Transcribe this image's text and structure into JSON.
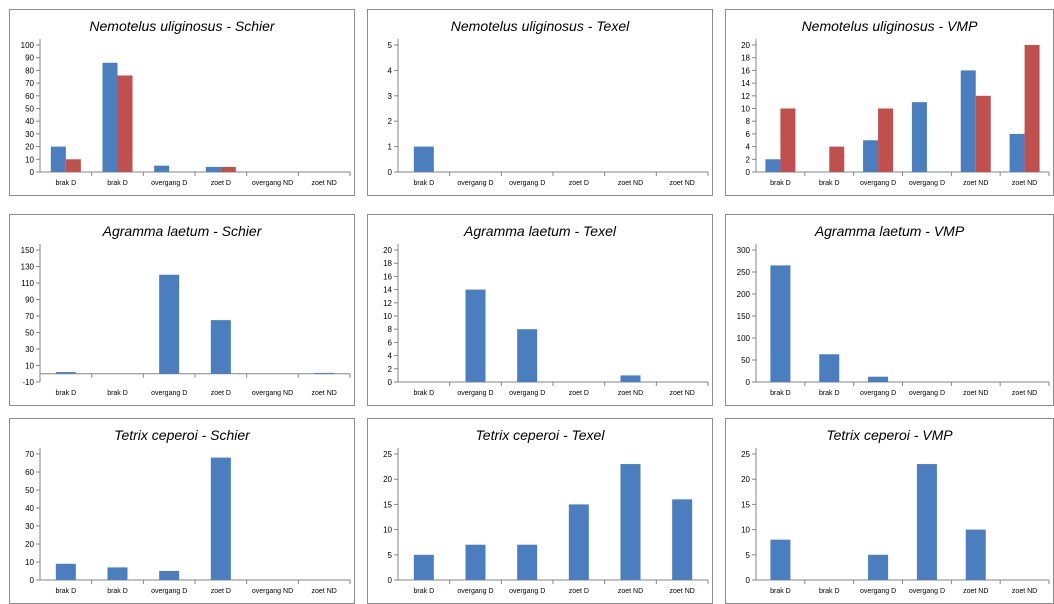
{
  "colors": {
    "series_a": "#4a7ebf",
    "series_b": "#c0504d",
    "axis": "#868686",
    "grid": "#d9d9d9"
  },
  "chart_data": [
    {
      "type": "bar",
      "title": "Nemotelus uliginosus - Schier",
      "categories": [
        "brak D",
        "brak D",
        "overgang D",
        "zoet D",
        "overgang ND",
        "zoet ND"
      ],
      "series": [
        {
          "values": [
            20,
            86,
            5,
            4,
            0,
            0
          ]
        },
        {
          "values": [
            10,
            76,
            0,
            4,
            0,
            0
          ]
        }
      ],
      "ylim": [
        0,
        100
      ],
      "yticks": [
        0,
        10,
        20,
        30,
        40,
        50,
        60,
        70,
        80,
        90,
        100
      ],
      "grid": false
    },
    {
      "type": "bar",
      "title": "Nemotelus uliginosus - Texel",
      "categories": [
        "brak D",
        "overgang D",
        "overgang D",
        "zoet D",
        "zoet ND",
        "zoet ND"
      ],
      "series": [
        {
          "values": [
            1,
            0,
            0,
            0,
            0,
            0
          ]
        }
      ],
      "ylim": [
        0,
        5
      ],
      "yticks": [
        0,
        1,
        2,
        3,
        4,
        5
      ],
      "grid": false
    },
    {
      "type": "bar",
      "title": "Nemotelus uliginosus - VMP",
      "categories": [
        "brak D",
        "brak D",
        "overgang D",
        "overgang D",
        "zoet ND",
        "zoet ND"
      ],
      "series": [
        {
          "values": [
            2,
            0,
            5,
            11,
            16,
            6
          ]
        },
        {
          "values": [
            10,
            4,
            10,
            0,
            12,
            20
          ]
        }
      ],
      "ylim": [
        0,
        20
      ],
      "yticks": [
        0,
        2,
        4,
        6,
        8,
        10,
        12,
        14,
        16,
        18,
        20
      ],
      "grid": false
    },
    {
      "type": "bar",
      "title": "Agramma laetum - Schier",
      "categories": [
        "brak D",
        "brak D",
        "overgang D",
        "zoet D",
        "overgang ND",
        "zoet ND"
      ],
      "series": [
        {
          "values": [
            2,
            0,
            120,
            65,
            0,
            1
          ]
        }
      ],
      "ylim": [
        -10,
        150
      ],
      "yticks": [
        -10,
        10,
        30,
        50,
        70,
        90,
        110,
        130,
        150
      ],
      "grid": false
    },
    {
      "type": "bar",
      "title": "Agramma laetum - Texel",
      "categories": [
        "brak D",
        "overgang D",
        "overgang D",
        "zoet D",
        "zoet ND",
        "zoet ND"
      ],
      "series": [
        {
          "values": [
            0,
            14,
            8,
            0,
            1,
            0
          ]
        }
      ],
      "ylim": [
        0,
        20
      ],
      "yticks": [
        0,
        2,
        4,
        6,
        8,
        10,
        12,
        14,
        16,
        18,
        20
      ],
      "grid": false
    },
    {
      "type": "bar",
      "title": "Agramma laetum - VMP",
      "categories": [
        "brak D",
        "brak D",
        "overgang D",
        "overgang D",
        "zoet ND",
        "zoet ND"
      ],
      "series": [
        {
          "values": [
            265,
            63,
            12,
            0,
            0,
            0
          ]
        }
      ],
      "ylim": [
        0,
        300
      ],
      "yticks": [
        0,
        50,
        100,
        150,
        200,
        250,
        300
      ],
      "grid": false
    },
    {
      "type": "bar",
      "title": "Tetrix ceperoi - Schier",
      "categories": [
        "brak D",
        "brak D",
        "overgang D",
        "zoet D",
        "overgang ND",
        "zoet ND"
      ],
      "series": [
        {
          "values": [
            9,
            7,
            5,
            68,
            0,
            0
          ]
        }
      ],
      "ylim": [
        0,
        70
      ],
      "yticks": [
        0,
        10,
        20,
        30,
        40,
        50,
        60,
        70
      ],
      "grid": false
    },
    {
      "type": "bar",
      "title": "Tetrix ceperoi - Texel",
      "categories": [
        "brak D",
        "overgang D",
        "overgang D",
        "zoet D",
        "zoet ND",
        "zoet ND"
      ],
      "series": [
        {
          "values": [
            5,
            7,
            7,
            15,
            23,
            16
          ]
        }
      ],
      "ylim": [
        0,
        25
      ],
      "yticks": [
        0,
        5,
        10,
        15,
        20,
        25
      ],
      "grid": false
    },
    {
      "type": "bar",
      "title": "Tetrix ceperoi - VMP",
      "categories": [
        "brak D",
        "brak D",
        "overgang D",
        "overgang D",
        "zoet ND",
        "zoet ND"
      ],
      "series": [
        {
          "values": [
            8,
            0,
            5,
            23,
            10,
            0
          ]
        }
      ],
      "ylim": [
        0,
        25
      ],
      "yticks": [
        0,
        5,
        10,
        15,
        20,
        25
      ],
      "grid": false
    }
  ]
}
